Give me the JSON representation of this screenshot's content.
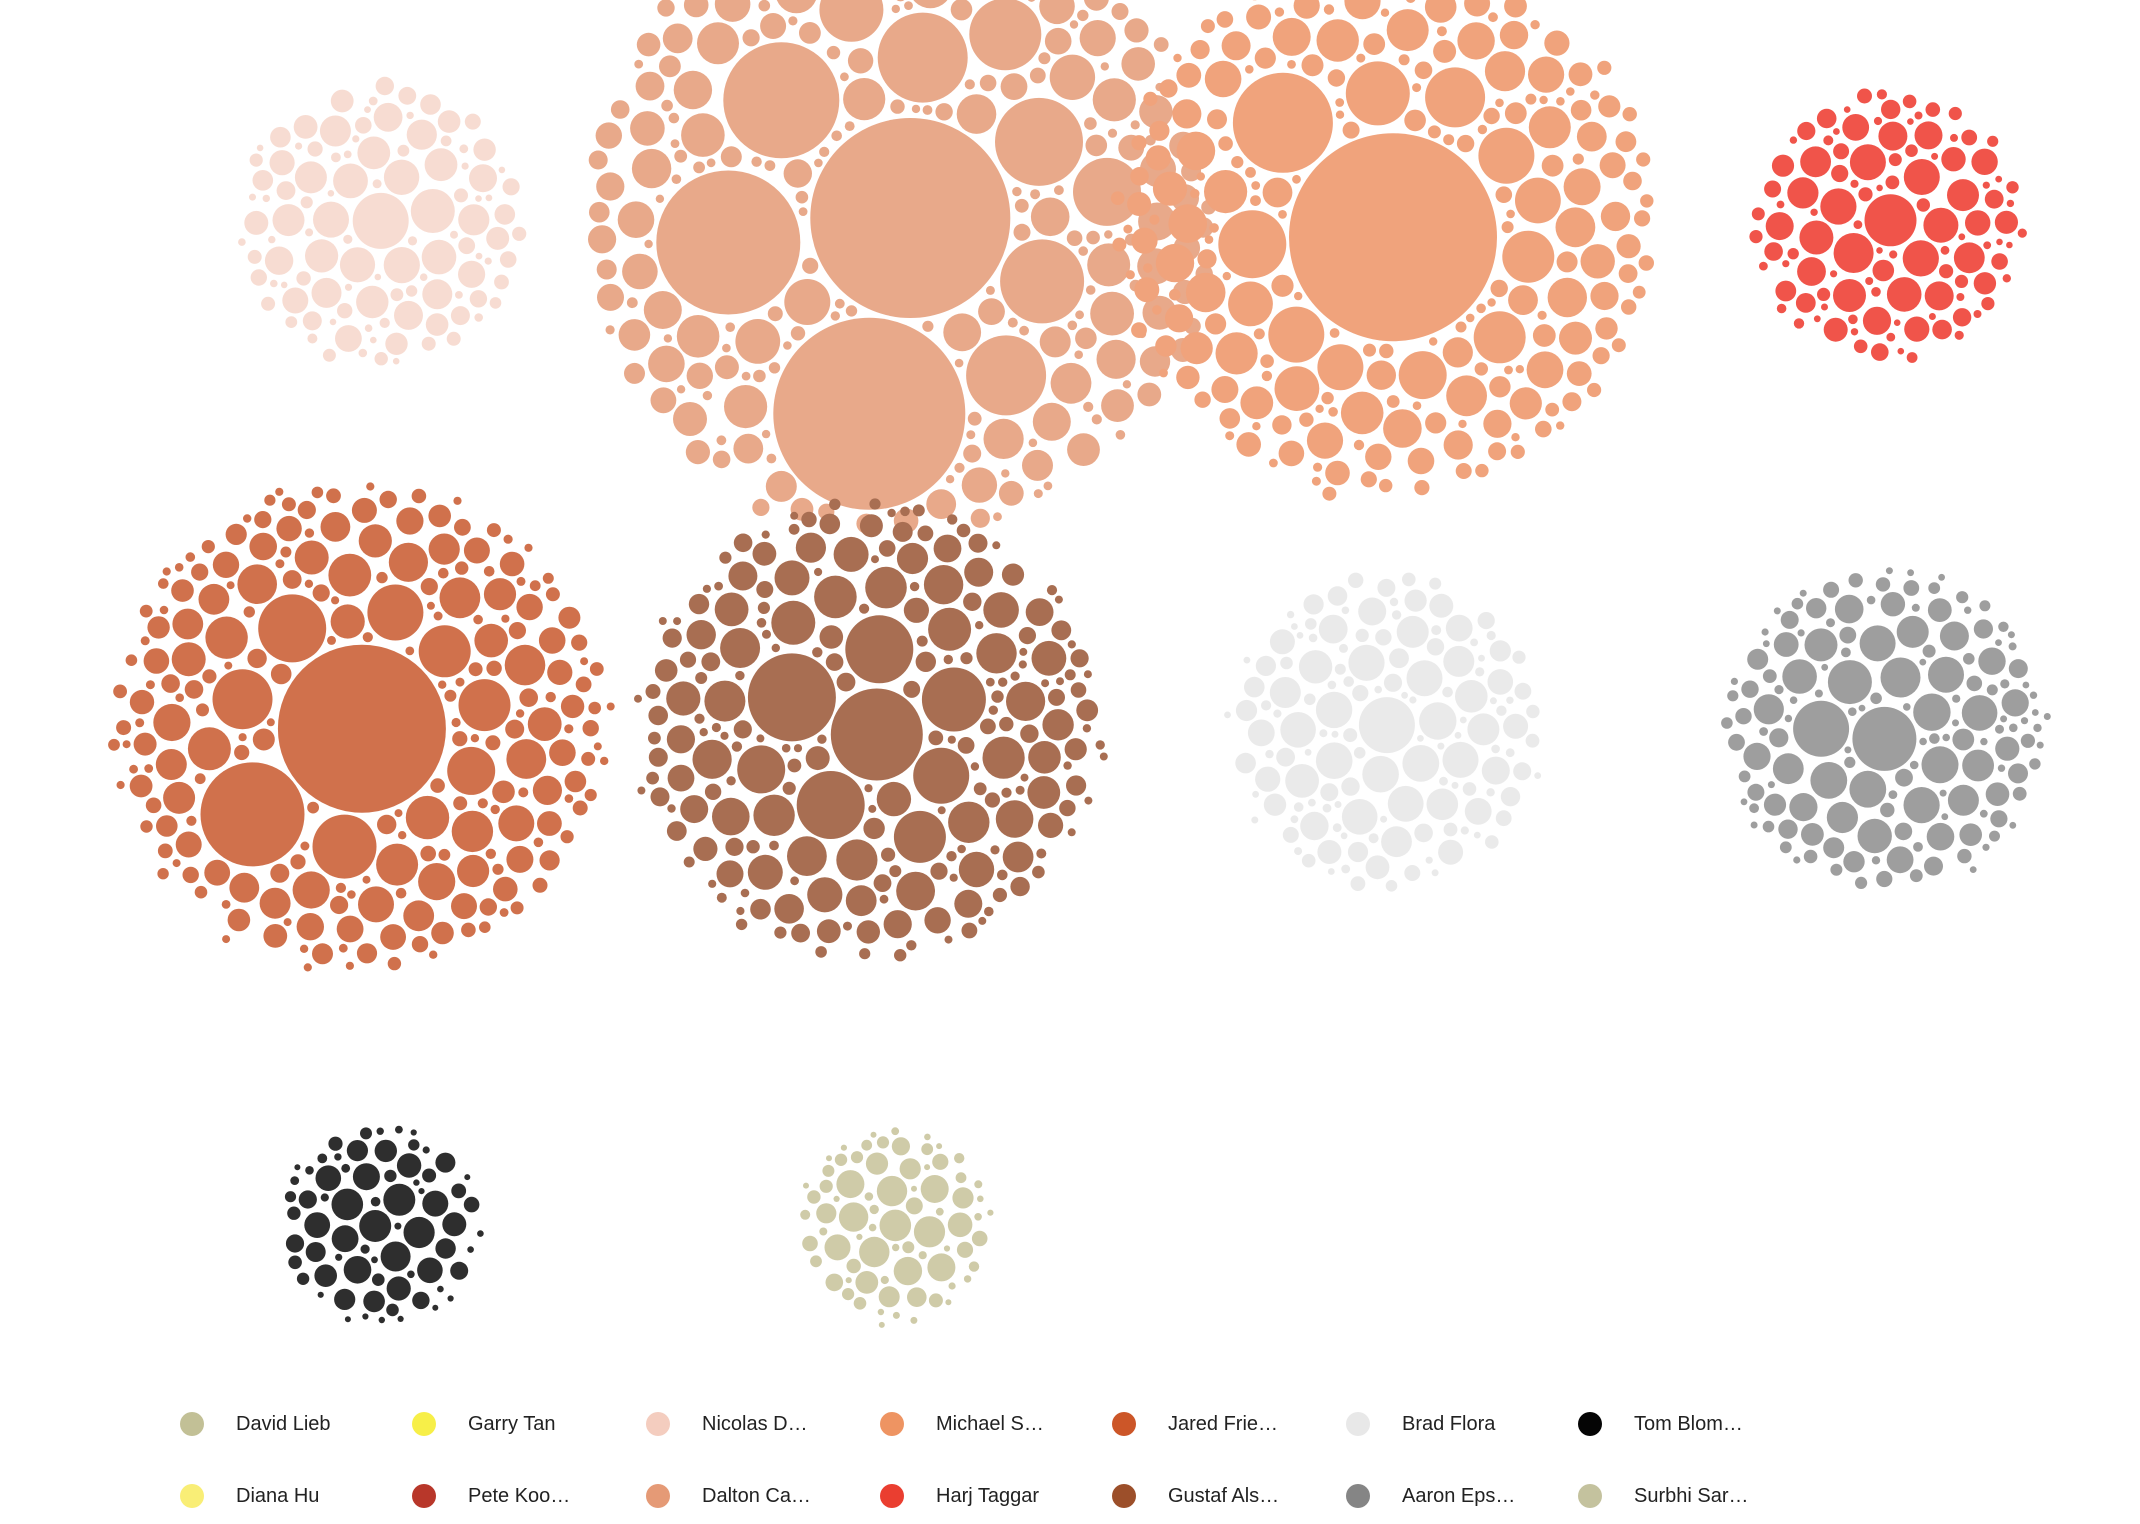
{
  "chart_data": {
    "type": "packed-bubble",
    "title": "",
    "groups": [
      {
        "name": "Nicolas D…",
        "color": "#f4cdbf",
        "opacity": 0.7,
        "bubble_count": 110,
        "large_values": [
          28,
          22,
          18,
          16,
          14,
          12
        ]
      },
      {
        "name": "Dalton Ca…",
        "color": "#e8a98a",
        "opacity": 1.0,
        "bubble_count": 240,
        "large_values": [
          100,
          96,
          72,
          58,
          45,
          44,
          42,
          40,
          36,
          34,
          32
        ]
      },
      {
        "name": "Michael S…",
        "color": "#f0a37c",
        "opacity": 1.0,
        "bubble_count": 230,
        "large_values": [
          104,
          50,
          34,
          32,
          30,
          28,
          28,
          26,
          26,
          24
        ]
      },
      {
        "name": "Harj Taggar",
        "color": "#f0544a",
        "opacity": 1.0,
        "bubble_count": 110,
        "large_values": [
          26,
          20,
          18,
          16,
          14,
          12
        ]
      },
      {
        "name": "Jared Frie…",
        "color": "#d0714c",
        "opacity": 1.0,
        "bubble_count": 230,
        "large_values": [
          84,
          52,
          34,
          32,
          30,
          28,
          26,
          26,
          24
        ]
      },
      {
        "name": "Gustaf Als…",
        "color": "#a86e52",
        "opacity": 1.0,
        "bubble_count": 220,
        "large_values": [
          46,
          44,
          34,
          34,
          32,
          28,
          26,
          24,
          22
        ]
      },
      {
        "name": "Brad Flora",
        "color": "#e9e9e9",
        "opacity": 0.95,
        "bubble_count": 140,
        "large_values": [
          28,
          18,
          16,
          14,
          14
        ]
      },
      {
        "name": "Aaron Eps…",
        "color": "#9e9e9e",
        "opacity": 1.0,
        "bubble_count": 150,
        "large_values": [
          32,
          28,
          22,
          20,
          18,
          16
        ]
      },
      {
        "name": "Tom Blom…",
        "color": "#2e2e2e",
        "opacity": 1.0,
        "bubble_count": 70,
        "large_values": [
          16,
          15,
          12,
          10
        ]
      },
      {
        "name": "Surbhi Sar…",
        "color": "#cfcba8",
        "opacity": 1.0,
        "bubble_count": 75,
        "large_values": [
          14
        ]
      }
    ],
    "legend": {
      "placement": "bottom",
      "items": [
        {
          "label": "David Lieb",
          "color": "#c2c096"
        },
        {
          "label": "Garry Tan",
          "color": "#f7ef48"
        },
        {
          "label": "Nicolas D…",
          "color": "#f4cdbf"
        },
        {
          "label": "Michael S…",
          "color": "#ee9462"
        },
        {
          "label": "Jared Frie…",
          "color": "#cc5628"
        },
        {
          "label": "Brad Flora",
          "color": "#e8e8e8"
        },
        {
          "label": "Tom Blom…",
          "color": "#050505"
        },
        {
          "label": "Diana Hu",
          "color": "#f9ee76"
        },
        {
          "label": "Pete Koo…",
          "color": "#b8372a"
        },
        {
          "label": "Dalton Ca…",
          "color": "#e59a76"
        },
        {
          "label": "Harj Taggar",
          "color": "#ea3e30"
        },
        {
          "label": "Gustaf Als…",
          "color": "#9c4f2a"
        },
        {
          "label": "Aaron Eps…",
          "color": "#858585"
        },
        {
          "label": "Surbhi Sar…",
          "color": "#c4c29e"
        }
      ]
    }
  }
}
